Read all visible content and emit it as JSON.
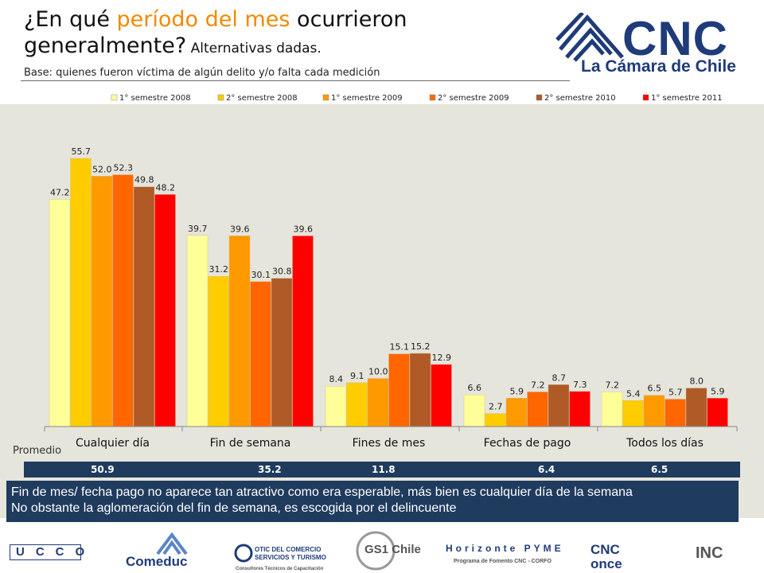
{
  "header": {
    "title_part1": "¿En qué ",
    "title_highlight": "período del mes",
    "title_part2": " ocurrieron generalmente?",
    "title_suffix": " Alternativas dadas.",
    "base": "Base: quienes fueron víctima de algún delito y/o falta cada medición"
  },
  "logo": {
    "name": "CNC",
    "subtitle": "La Cámara de Chile"
  },
  "chart_data": {
    "type": "bar",
    "categories": [
      "Cualquier día",
      "Fin de semana",
      "Fines de mes",
      "Fechas de pago",
      "Todos los días"
    ],
    "series": [
      {
        "name": "1° semestre 2008",
        "color": "#ffff99",
        "values": [
          47.2,
          39.7,
          8.4,
          6.6,
          7.2
        ]
      },
      {
        "name": "2° semestre 2008",
        "color": "#ffcc00",
        "values": [
          55.7,
          31.2,
          9.1,
          2.7,
          5.4
        ]
      },
      {
        "name": "1° semestre 2009",
        "color": "#ff9900",
        "values": [
          52.0,
          39.6,
          10.0,
          5.9,
          6.5
        ]
      },
      {
        "name": "2° semestre 2009",
        "color": "#ff6600",
        "values": [
          52.3,
          30.1,
          15.1,
          7.2,
          5.7
        ]
      },
      {
        "name": "2° semestre 2010",
        "color": "#b05a28",
        "values": [
          49.8,
          30.8,
          15.2,
          8.7,
          8.0
        ]
      },
      {
        "name": "1° semestre 2011",
        "color": "#ff0000",
        "values": [
          48.2,
          39.6,
          12.9,
          7.3,
          5.9
        ]
      }
    ],
    "ylim": [
      0,
      60
    ],
    "legend_position": "top",
    "grid": false
  },
  "promedio": {
    "label": "Promedio",
    "values": [
      "50.9",
      "35.2",
      "11.8",
      "6.4",
      "6.5"
    ]
  },
  "note": {
    "line1": "Fin de mes/ fecha pago no aparece tan atractivo como era esperable, más bien es cualquier día de la semana",
    "line2": "No obstante la aglomeración del fin de semana, es escogida por el delincuente"
  },
  "footer": {
    "logos": [
      "UCCO",
      "Comeduc",
      "OTIC DEL COMERCIO SERVICIOS Y TURISMO",
      "GS1 Chile",
      "Horizonte PYME",
      "CNC once",
      "INC"
    ],
    "horizonte_sub": "Programa de Fomento CNC - CORFO",
    "otic_sub": "Consultores Técnicos de Capacitación"
  }
}
